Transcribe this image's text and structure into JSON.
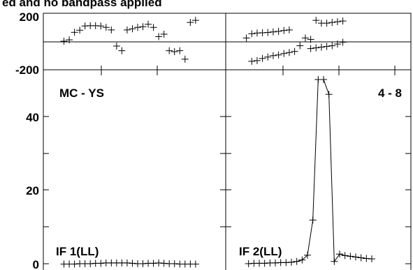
{
  "page": {
    "title_fragment": "ed and no bandpass applied"
  },
  "colors": {
    "ink": "#000000",
    "background": "#ffffff"
  },
  "chart_data": {
    "type": "line",
    "title": "ed and no bandpass applied",
    "shared_x": "channel",
    "phase_axis": {
      "ticks": [
        "200",
        "-200"
      ],
      "ylim": [
        -200,
        200
      ]
    },
    "amp_axis": {
      "ticks": [
        "40",
        "20",
        "0"
      ],
      "ylim": [
        0,
        50
      ]
    },
    "xlim": [
      0,
      15
    ],
    "panels": [
      {
        "id": "left",
        "baseline": "MC - YS",
        "label": "IF 1(LL)",
        "phase": [
          {
            "x": 0.3,
            "y": 2
          },
          {
            "x": 0.8,
            "y": 12
          },
          {
            "x": 1.3,
            "y": 65
          },
          {
            "x": 1.8,
            "y": 80
          },
          {
            "x": 2.3,
            "y": 110
          },
          {
            "x": 2.8,
            "y": 112
          },
          {
            "x": 3.3,
            "y": 112
          },
          {
            "x": 3.8,
            "y": 110
          },
          {
            "x": 4.3,
            "y": 100
          },
          {
            "x": 4.8,
            "y": 82
          },
          {
            "x": 5.3,
            "y": -32
          },
          {
            "x": 5.8,
            "y": -65
          },
          {
            "x": 6.3,
            "y": 82
          },
          {
            "x": 6.8,
            "y": 90
          },
          {
            "x": 7.3,
            "y": 100
          },
          {
            "x": 7.8,
            "y": 105
          },
          {
            "x": 8.3,
            "y": 122
          },
          {
            "x": 8.8,
            "y": 100
          },
          {
            "x": 9.3,
            "y": 35
          },
          {
            "x": 9.8,
            "y": 52
          },
          {
            "x": 10.3,
            "y": -65
          },
          {
            "x": 10.8,
            "y": -72
          },
          {
            "x": 11.3,
            "y": -65
          },
          {
            "x": 11.8,
            "y": -125
          },
          {
            "x": 12.3,
            "y": 135
          },
          {
            "x": 12.8,
            "y": 150
          }
        ],
        "amp": [
          {
            "x": 0.3,
            "y": 0.1
          },
          {
            "x": 0.8,
            "y": 0.1
          },
          {
            "x": 1.3,
            "y": 0.1
          },
          {
            "x": 1.8,
            "y": 0.2
          },
          {
            "x": 2.3,
            "y": 0.2
          },
          {
            "x": 2.8,
            "y": 0.2
          },
          {
            "x": 3.3,
            "y": 0.3
          },
          {
            "x": 3.8,
            "y": 0.3
          },
          {
            "x": 4.3,
            "y": 0.4
          },
          {
            "x": 4.8,
            "y": 0.4
          },
          {
            "x": 5.3,
            "y": 0.4
          },
          {
            "x": 5.8,
            "y": 0.4
          },
          {
            "x": 6.3,
            "y": 0.4
          },
          {
            "x": 6.8,
            "y": 0.3
          },
          {
            "x": 7.3,
            "y": 0.2
          },
          {
            "x": 7.8,
            "y": 0.2
          },
          {
            "x": 8.3,
            "y": 0.3
          },
          {
            "x": 8.8,
            "y": 0.3
          },
          {
            "x": 9.3,
            "y": 0.4
          },
          {
            "x": 9.8,
            "y": 0.3
          },
          {
            "x": 10.3,
            "y": 0.2
          },
          {
            "x": 10.8,
            "y": 0.2
          },
          {
            "x": 11.3,
            "y": 0.1
          },
          {
            "x": 11.8,
            "y": 0.1
          },
          {
            "x": 12.3,
            "y": 0.1
          },
          {
            "x": 12.8,
            "y": 0.1
          }
        ]
      },
      {
        "id": "right",
        "baseline": "4 - 8",
        "label": "IF 2(LL)",
        "phase": [
          {
            "x": 0.3,
            "y": 25
          },
          {
            "x": 0.8,
            "y": 55
          },
          {
            "x": 1.3,
            "y": 60
          },
          {
            "x": 1.8,
            "y": 62
          },
          {
            "x": 2.3,
            "y": 64
          },
          {
            "x": 2.8,
            "y": 68
          },
          {
            "x": 3.3,
            "y": 72
          },
          {
            "x": 3.8,
            "y": 78
          },
          {
            "x": 4.3,
            "y": 82
          },
          {
            "x": 5.8,
            "y": 25
          },
          {
            "x": 6.3,
            "y": 15
          },
          {
            "x": 6.8,
            "y": 150
          },
          {
            "x": 7.3,
            "y": 130
          },
          {
            "x": 7.8,
            "y": 130
          },
          {
            "x": 8.3,
            "y": 135
          },
          {
            "x": 8.8,
            "y": 140
          },
          {
            "x": 9.3,
            "y": 145
          },
          {
            "x": 0.8,
            "y": -140
          },
          {
            "x": 1.3,
            "y": -135
          },
          {
            "x": 1.8,
            "y": -120
          },
          {
            "x": 2.3,
            "y": -110
          },
          {
            "x": 2.8,
            "y": -100
          },
          {
            "x": 3.3,
            "y": -95
          },
          {
            "x": 3.8,
            "y": -85
          },
          {
            "x": 4.3,
            "y": -78
          },
          {
            "x": 4.8,
            "y": -70
          },
          {
            "x": 5.3,
            "y": -30
          },
          {
            "x": 6.3,
            "y": -50
          },
          {
            "x": 6.8,
            "y": -45
          },
          {
            "x": 7.3,
            "y": -40
          },
          {
            "x": 7.8,
            "y": -35
          },
          {
            "x": 8.3,
            "y": -30
          },
          {
            "x": 8.8,
            "y": -18
          },
          {
            "x": 9.3,
            "y": -5
          }
        ],
        "amp": [
          {
            "x": 0.5,
            "y": 0.2
          },
          {
            "x": 1.0,
            "y": 0.3
          },
          {
            "x": 1.5,
            "y": 0.3
          },
          {
            "x": 2.0,
            "y": 0.3
          },
          {
            "x": 2.5,
            "y": 0.4
          },
          {
            "x": 3.0,
            "y": 0.4
          },
          {
            "x": 3.5,
            "y": 0.5
          },
          {
            "x": 4.0,
            "y": 0.5
          },
          {
            "x": 4.5,
            "y": 0.6
          },
          {
            "x": 5.0,
            "y": 0.8
          },
          {
            "x": 5.5,
            "y": 1.2
          },
          {
            "x": 6.0,
            "y": 2.5
          },
          {
            "x": 6.5,
            "y": 12
          },
          {
            "x": 7.0,
            "y": 50
          },
          {
            "x": 7.5,
            "y": 50
          },
          {
            "x": 8.0,
            "y": 46
          },
          {
            "x": 8.5,
            "y": 0.8
          },
          {
            "x": 9.0,
            "y": 2.8
          },
          {
            "x": 9.5,
            "y": 2.4
          },
          {
            "x": 10.0,
            "y": 2.2
          },
          {
            "x": 10.5,
            "y": 2.0
          },
          {
            "x": 11.0,
            "y": 1.8
          },
          {
            "x": 11.5,
            "y": 1.6
          },
          {
            "x": 12.0,
            "y": 1.5
          }
        ]
      }
    ]
  }
}
